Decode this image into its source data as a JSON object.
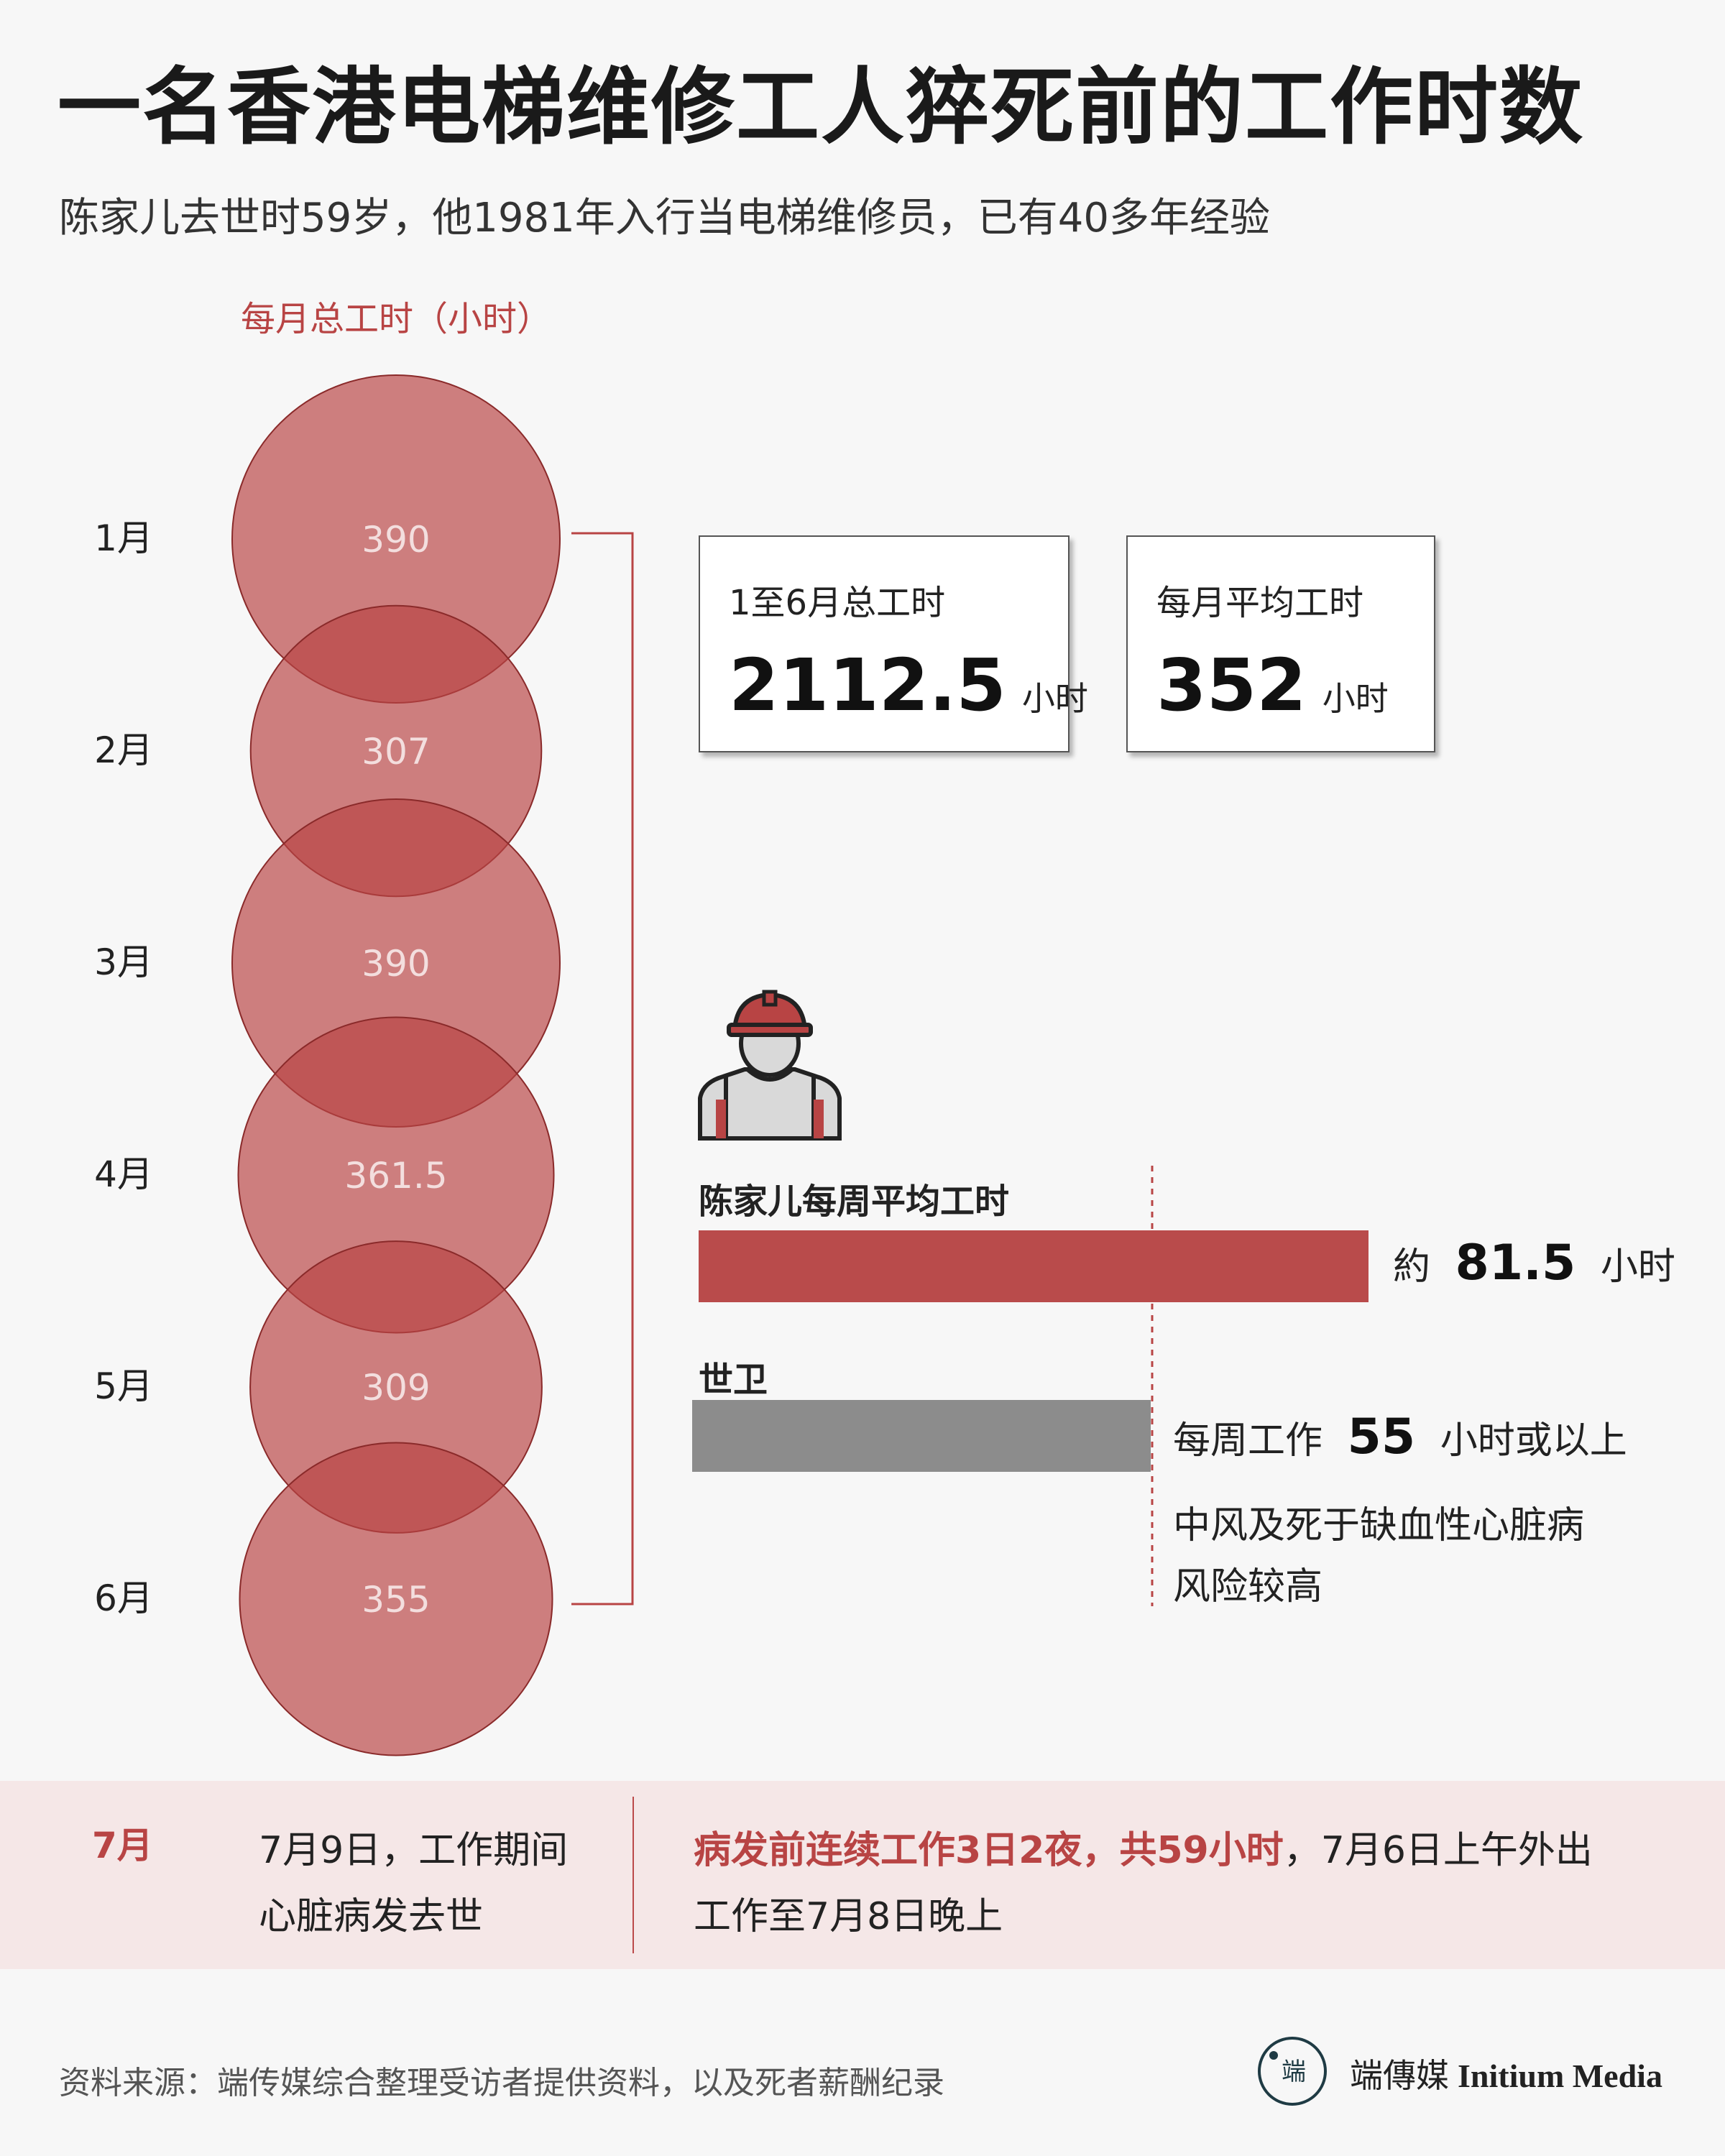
{
  "title": "一名香港电梯维修工人猝死前的工作时数",
  "subtitle": "陈家儿去世时59岁，他1981年入行当电梯维修员，已有40多年经验",
  "chart_data": {
    "type": "bubble",
    "title": "每月总工时（小时）",
    "categories": [
      "1月",
      "2月",
      "3月",
      "4月",
      "5月",
      "6月"
    ],
    "values": [
      390,
      307,
      390,
      361.5,
      309,
      355
    ],
    "value_labels": [
      "390",
      "307",
      "390",
      "361.5",
      "309",
      "355"
    ]
  },
  "colors": {
    "circle_fill": "#b84444",
    "circle_stroke": "#8a2a2a",
    "accent": "#b84444",
    "bar_chen": "#b94b4b",
    "bar_who": "#8c8c8c"
  },
  "summary": {
    "total": {
      "label": "1至6月总工时",
      "value": "2112.5",
      "unit": "小时"
    },
    "average": {
      "label": "每月平均工时",
      "value": "352",
      "unit": "小时"
    }
  },
  "weekly": {
    "icon": "worker-icon",
    "chen": {
      "label": "陈家儿每周平均工时",
      "value": 81.5,
      "prefix": "約",
      "value_text": "81.5",
      "unit": "小时"
    },
    "who": {
      "label": "世卫",
      "value": 55,
      "prefix": "每周工作",
      "value_text": "55",
      "unit": "小时或以上",
      "note_line1": "中风及死于缺血性心脏病",
      "note_line2": "风险较高"
    }
  },
  "july": {
    "month": "7月",
    "event_line1": "7月9日，工作期间",
    "event_line2": "心脏病发去世",
    "highlight": "病发前连续工作3日2夜，共59小时",
    "detail_tail": "，7月6日上午外出",
    "detail_line2": "工作至7月8日晚上"
  },
  "source": "资料来源：端传媒综合整理受访者提供资料，以及死者薪酬纪录",
  "brand": {
    "cn": "端傳媒",
    "en": "Initium Media",
    "icon": "initium-logo-icon"
  }
}
